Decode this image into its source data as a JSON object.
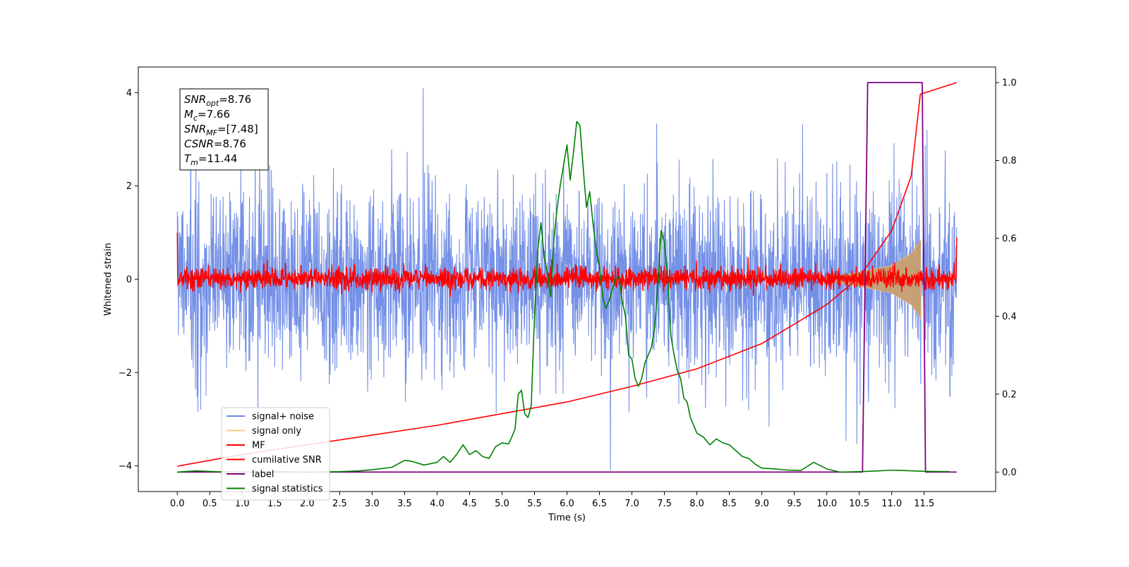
{
  "chart_data": {
    "type": "line",
    "title": "",
    "xlabel": "Time (s)",
    "ylabel": "Whitened strain",
    "ylabel_right": "",
    "xlim": [
      -0.6,
      12.6
    ],
    "ylim": [
      -4.55,
      4.55
    ],
    "ylim_right": [
      -0.05,
      1.04
    ],
    "x_ticks": [
      0.0,
      0.5,
      1.0,
      1.5,
      2.0,
      2.5,
      3.0,
      3.5,
      4.0,
      4.5,
      5.0,
      5.5,
      6.0,
      6.5,
      7.0,
      7.5,
      8.0,
      8.5,
      9.0,
      9.5,
      10.0,
      10.5,
      11.0,
      11.5
    ],
    "x_tick_labels": [
      "0.0",
      "0.5",
      "1.0",
      "1.5",
      "2.0",
      "2.5",
      "3.0",
      "3.5",
      "4.0",
      "4.5",
      "5.0",
      "5.5",
      "6.0",
      "6.5",
      "7.0",
      "7.5",
      "8.0",
      "8.5",
      "9.0",
      "9.5",
      "10.0",
      "10.5",
      "11.0",
      "11.5"
    ],
    "y_ticks": [
      -4,
      -2,
      0,
      2,
      4
    ],
    "y_tick_labels": [
      "−4",
      "−2",
      "0",
      "2",
      "4"
    ],
    "y_ticks_right": [
      0.0,
      0.2,
      0.4,
      0.6,
      0.8,
      1.0
    ],
    "y_tick_labels_right": [
      "0.0",
      "0.2",
      "0.4",
      "0.6",
      "0.8",
      "1.0"
    ],
    "grid": false,
    "legend_position": "lower-left",
    "annotation": [
      {
        "base": "SNR",
        "sub": "opt",
        "value": "=8.76"
      },
      {
        "base": "M",
        "sub": "c",
        "value": "=7.66"
      },
      {
        "base": "SNR",
        "sub": "MF",
        "value": "=[7.48]"
      },
      {
        "base": "CSNR",
        "sub": "",
        "value": "=8.76"
      },
      {
        "base": "T",
        "sub": "m",
        "value": "=11.44"
      }
    ],
    "series": [
      {
        "name": "signal+ noise",
        "color": "#6d8ae6",
        "axis": "left",
        "description": "noisy strain, roughly between -3 and 3 with spikes to about ±4",
        "t_range": [
          0,
          12
        ],
        "amplitude": 1.0,
        "seed": 7
      },
      {
        "name": "signal only",
        "color": "#f5c97a",
        "axis": "left",
        "description": "chirp envelope, near zero, growing after 10.0 to about ±0.8 at 11.45",
        "envelope": {
          "x": [
            10.0,
            10.5,
            11.0,
            11.3,
            11.45
          ],
          "y": [
            0.05,
            0.15,
            0.3,
            0.55,
            0.85
          ]
        }
      },
      {
        "name": "MF",
        "color": "#ff0000",
        "axis": "left",
        "description": "matched filter output around 0, amplitude about ±0.2",
        "t_range": [
          0,
          12
        ],
        "amplitude": 0.12,
        "seed": 13
      },
      {
        "name": "cumilative SNR",
        "color": "#ff0000",
        "axis": "right",
        "x": [
          0.0,
          1.0,
          2.0,
          3.0,
          4.0,
          5.0,
          6.0,
          7.0,
          8.0,
          9.0,
          10.0,
          10.5,
          11.0,
          11.3,
          11.44,
          12.0
        ],
        "y": [
          0.015,
          0.045,
          0.07,
          0.095,
          0.12,
          0.15,
          0.18,
          0.22,
          0.265,
          0.33,
          0.43,
          0.5,
          0.62,
          0.76,
          0.97,
          1.0
        ]
      },
      {
        "name": "label",
        "color": "#800080",
        "axis": "right",
        "x": [
          0.0,
          10.55,
          10.63,
          11.47,
          11.52,
          12.0
        ],
        "y": [
          0.0,
          0.0,
          1.0,
          1.0,
          0.0,
          0.0
        ]
      },
      {
        "name": "signal statistics",
        "color": "#008000",
        "axis": "right",
        "x": [
          0.0,
          0.3,
          0.6,
          1.0,
          1.5,
          2.0,
          2.5,
          2.8,
          3.0,
          3.3,
          3.5,
          3.6,
          3.8,
          4.0,
          4.1,
          4.2,
          4.3,
          4.4,
          4.5,
          4.6,
          4.7,
          4.8,
          4.9,
          5.0,
          5.1,
          5.15,
          5.2,
          5.25,
          5.3,
          5.35,
          5.4,
          5.45,
          5.5,
          5.55,
          5.6,
          5.65,
          5.7,
          5.75,
          5.8,
          5.85,
          5.9,
          5.95,
          6.0,
          6.05,
          6.1,
          6.15,
          6.2,
          6.25,
          6.3,
          6.35,
          6.4,
          6.45,
          6.5,
          6.55,
          6.6,
          6.65,
          6.7,
          6.75,
          6.8,
          6.85,
          6.9,
          6.95,
          7.0,
          7.05,
          7.1,
          7.15,
          7.2,
          7.25,
          7.3,
          7.35,
          7.4,
          7.45,
          7.5,
          7.55,
          7.6,
          7.65,
          7.7,
          7.75,
          7.8,
          7.85,
          7.9,
          8.0,
          8.1,
          8.2,
          8.3,
          8.4,
          8.5,
          8.6,
          8.7,
          8.8,
          8.9,
          9.0,
          9.2,
          9.4,
          9.6,
          9.8,
          10.0,
          10.2,
          10.5,
          10.8,
          11.0,
          11.5,
          11.9
        ],
        "y": [
          0.0,
          0.003,
          0.001,
          0.0,
          0.001,
          0.0,
          0.001,
          0.003,
          0.006,
          0.012,
          0.03,
          0.028,
          0.018,
          0.025,
          0.04,
          0.025,
          0.045,
          0.07,
          0.045,
          0.055,
          0.04,
          0.035,
          0.065,
          0.075,
          0.072,
          0.09,
          0.11,
          0.2,
          0.21,
          0.15,
          0.14,
          0.17,
          0.4,
          0.57,
          0.64,
          0.55,
          0.51,
          0.45,
          0.6,
          0.68,
          0.74,
          0.79,
          0.84,
          0.75,
          0.82,
          0.9,
          0.89,
          0.78,
          0.68,
          0.72,
          0.64,
          0.57,
          0.53,
          0.45,
          0.42,
          0.44,
          0.47,
          0.5,
          0.5,
          0.44,
          0.4,
          0.3,
          0.29,
          0.24,
          0.22,
          0.24,
          0.28,
          0.3,
          0.32,
          0.37,
          0.48,
          0.62,
          0.59,
          0.5,
          0.35,
          0.3,
          0.26,
          0.24,
          0.19,
          0.18,
          0.14,
          0.1,
          0.09,
          0.07,
          0.085,
          0.075,
          0.07,
          0.055,
          0.04,
          0.035,
          0.02,
          0.01,
          0.008,
          0.005,
          0.004,
          0.025,
          0.008,
          0.0,
          0.001,
          0.003,
          0.005,
          0.002,
          0.001
        ]
      }
    ]
  }
}
